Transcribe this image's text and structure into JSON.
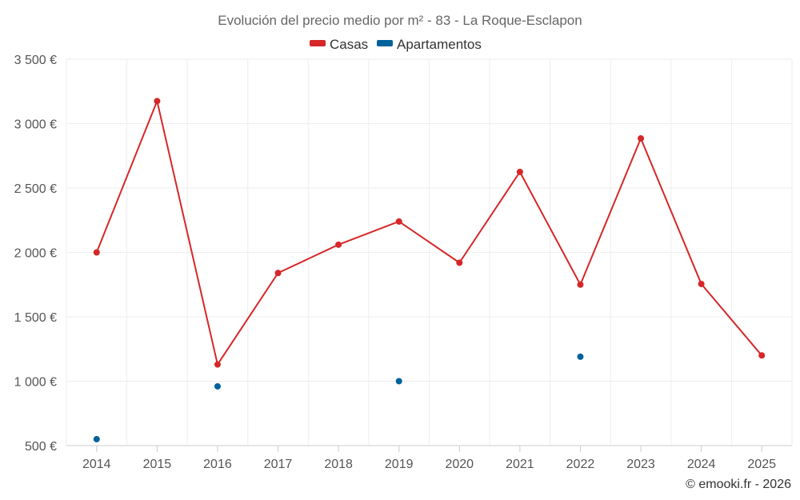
{
  "chart_data": {
    "type": "line",
    "title": "Evolución del precio medio por m² - 83 - La Roque-Esclapon",
    "categories": [
      "2014",
      "2015",
      "2016",
      "2017",
      "2018",
      "2019",
      "2020",
      "2021",
      "2022",
      "2023",
      "2024",
      "2025"
    ],
    "series": [
      {
        "name": "Casas",
        "color": "#d62728",
        "style": "line-markers",
        "values": [
          2000,
          3175,
          1130,
          1840,
          2060,
          2240,
          1920,
          2625,
          1750,
          2885,
          1755,
          1200
        ]
      },
      {
        "name": "Apartamentos",
        "color": "#00629b",
        "style": "markers",
        "values": [
          550,
          null,
          960,
          null,
          null,
          1000,
          null,
          null,
          1190,
          null,
          null,
          null
        ]
      }
    ],
    "ylim": [
      500,
      3500
    ],
    "yticks": [
      500,
      1000,
      1500,
      2000,
      2500,
      3000,
      3500
    ],
    "ytick_labels": [
      "500 €",
      "1 000 €",
      "1 500 €",
      "2 000 €",
      "2 500 €",
      "3 000 €",
      "3 500 €"
    ],
    "grid": true,
    "legend_position": "top-center",
    "xlabel": "",
    "ylabel": "",
    "credit": "© emooki.fr - 2026"
  }
}
